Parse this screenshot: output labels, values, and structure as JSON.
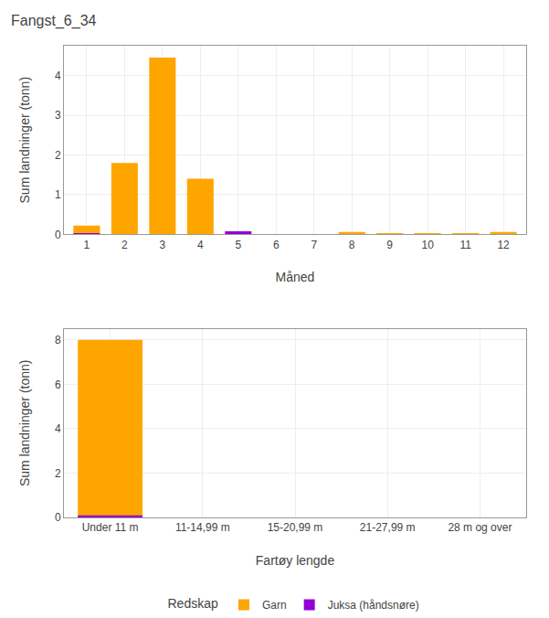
{
  "chart_data": [
    {
      "type": "bar",
      "title": "Fangst_6_34",
      "xlabel": "Måned",
      "ylabel": "Sum landninger (tonn)",
      "x": [
        1,
        2,
        3,
        4,
        5,
        6,
        7,
        8,
        9,
        10,
        11,
        12
      ],
      "series": [
        {
          "name": "Garn",
          "color": "#FFA500",
          "values": [
            0.22,
            1.8,
            4.45,
            1.4,
            0.0,
            0.0,
            0.0,
            0.06,
            0.03,
            0.03,
            0.03,
            0.06
          ]
        },
        {
          "name": "Juksa (håndsnøre)",
          "color": "#9400D3",
          "values": [
            0.012,
            0.0,
            0.0,
            0.0,
            0.08,
            0.0,
            0.0,
            0.0,
            0.0,
            0.0,
            0.0,
            0.0
          ]
        }
      ],
      "xlim": [
        0.4,
        12.6
      ],
      "xticks": [
        1,
        2,
        3,
        4,
        5,
        6,
        7,
        8,
        9,
        10,
        11,
        12
      ],
      "ylim": [
        0,
        4.75
      ],
      "yticks": [
        0,
        1,
        2,
        3,
        4
      ],
      "grid": true
    },
    {
      "type": "bar",
      "xlabel": "Fartøy lengde",
      "ylabel": "Sum landninger (tonn)",
      "categories": [
        "Under 11 m",
        "11-14,99 m",
        "15-20,99 m",
        "21-27,99 m",
        "28 m og over"
      ],
      "series": [
        {
          "name": "Garn",
          "color": "#FFA500",
          "values": [
            8.0,
            0.0,
            0.0,
            0.0,
            0.0
          ]
        },
        {
          "name": "Juksa (håndsnøre)",
          "color": "#9400D3",
          "values": [
            0.09,
            0.0,
            0.0,
            0.0,
            0.0
          ]
        }
      ],
      "ylim": [
        0,
        8.5
      ],
      "yticks": [
        0,
        2,
        4,
        6,
        8
      ],
      "grid": true,
      "legend": "bottom",
      "legend_title": "Redskap"
    }
  ]
}
